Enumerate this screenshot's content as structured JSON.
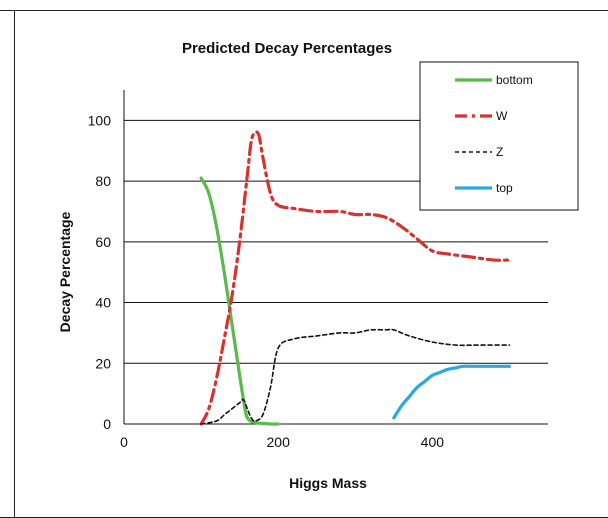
{
  "chart_data": {
    "type": "line",
    "title": "Predicted Decay Percentages",
    "xlabel": "Higgs Mass",
    "ylabel": "Decay Percentage",
    "xlim": [
      0,
      550
    ],
    "ylim": [
      0,
      110
    ],
    "xticks": [
      0,
      200,
      400
    ],
    "yticks": [
      0,
      20,
      40,
      60,
      80,
      100
    ],
    "grid": "horizontal",
    "legend_position": "top-right",
    "series": [
      {
        "name": "bottom",
        "color": "#5ab94a",
        "style": "solid",
        "x": [
          100,
          110,
          120,
          130,
          140,
          150,
          155,
          160,
          170,
          180,
          190,
          200
        ],
        "y": [
          81,
          76,
          65,
          50,
          33,
          16,
          8,
          2,
          0.5,
          0.2,
          0,
          0
        ]
      },
      {
        "name": "W",
        "color": "#d9312e",
        "style": "dashdot",
        "x": [
          100,
          110,
          120,
          130,
          140,
          150,
          160,
          165,
          170,
          175,
          180,
          190,
          200,
          220,
          250,
          280,
          300,
          320,
          340,
          360,
          380,
          400,
          420,
          450,
          480,
          500
        ],
        "y": [
          0,
          5,
          15,
          28,
          42,
          60,
          82,
          93,
          96,
          95,
          88,
          76,
          72,
          71,
          70,
          70,
          69,
          69,
          68,
          65,
          61,
          57,
          56,
          55,
          54,
          54
        ]
      },
      {
        "name": "Z",
        "color": "#111111",
        "style": "dashed",
        "x": [
          100,
          120,
          130,
          140,
          150,
          155,
          160,
          165,
          170,
          180,
          190,
          200,
          220,
          250,
          280,
          300,
          320,
          340,
          350,
          370,
          400,
          430,
          460,
          500
        ],
        "y": [
          0,
          1,
          3,
          5,
          7,
          8,
          5,
          2,
          1,
          3,
          12,
          25,
          28,
          29,
          30,
          30,
          31,
          31,
          31,
          29,
          27,
          26,
          26,
          26
        ]
      },
      {
        "name": "top",
        "color": "#2aa8e0",
        "style": "solid",
        "x": [
          350,
          360,
          370,
          380,
          390,
          400,
          410,
          420,
          430,
          440,
          450,
          470,
          500
        ],
        "y": [
          2,
          6,
          9,
          12,
          14,
          16,
          17,
          18,
          18.5,
          19,
          19,
          19,
          19
        ]
      }
    ]
  }
}
